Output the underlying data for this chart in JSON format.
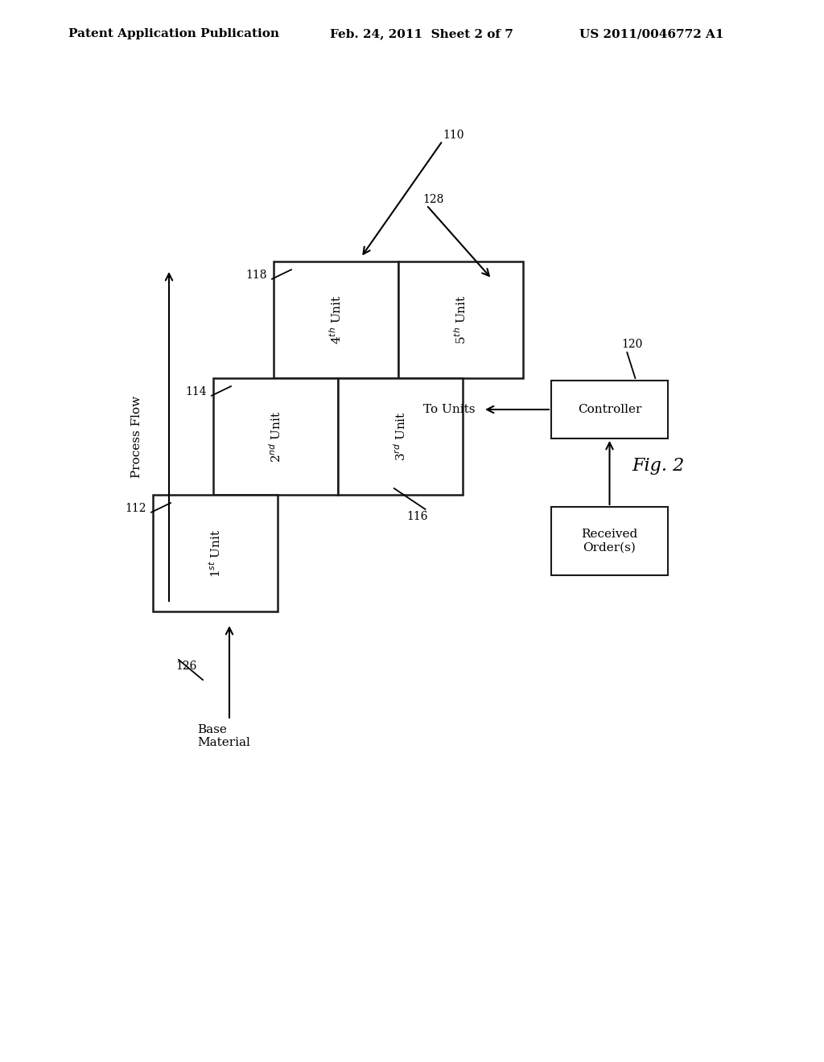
{
  "header_left": "Patent Application Publication",
  "header_mid": "Feb. 24, 2011  Sheet 2 of 7",
  "header_right": "US 2011/0046772 A1",
  "fig_label": "Fig. 2",
  "background_color": "#ffffff",
  "header_fontsize": 11,
  "diagram": {
    "ref_110": "110",
    "ref_112": "112",
    "ref_114": "114",
    "ref_116": "116",
    "ref_118": "118",
    "ref_120": "120",
    "ref_126": "126",
    "ref_128": "128",
    "process_flow_label": "Process Flow",
    "base_material_label": "Base\nMaterial",
    "to_units_label": "To Units",
    "controller_label": "Controller",
    "received_orders_label": "Received\nOrder(s)"
  }
}
